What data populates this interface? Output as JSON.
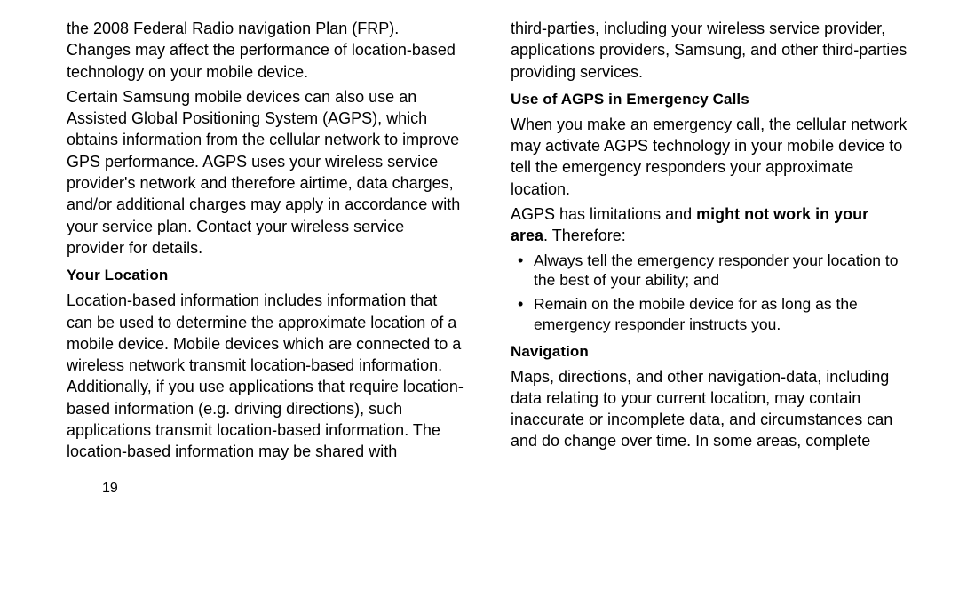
{
  "left": {
    "p1": "the 2008 Federal Radio navigation Plan (FRP). Changes may affect the performance of location-based technology on your mobile device.",
    "p2": "Certain Samsung mobile devices can also use an Assisted Global Positioning System (AGPS), which obtains information from the cellular network to improve GPS performance. AGPS uses your wireless service provider's network and therefore airtime, data charges, and/or additional charges may apply in accordance with your service plan. Contact your wireless service provider for details.",
    "h1": "Your Location",
    "p3": "Location-based information includes information that can be used to determine the approximate location of a mobile device. Mobile devices which are connected to a wireless network transmit location-based information. Additionally, if you use applications that require location-based information (e.g. driving directions), such applications transmit location-based information. The location-based information may be shared with",
    "page_num": "19"
  },
  "right": {
    "p1": "third-parties, including your wireless service provider, applications providers, Samsung, and other third-parties providing services.",
    "h1": "Use of AGPS in Emergency Calls",
    "p2": "When you make an emergency call, the cellular network may activate AGPS technology in your mobile device to tell the emergency responders your approximate location.",
    "p3a": "AGPS has limitations and ",
    "p3b": "might not work in your area",
    "p3c": ". Therefore:",
    "b1": "Always tell the emergency responder your location to the best of your ability; and",
    "b2": "Remain on the mobile device for as long as the emergency responder instructs you.",
    "h2": "Navigation",
    "p4": "Maps, directions, and other navigation-data, including data relating to your current location, may contain inaccurate or incomplete data, and circumstances can and do change over time. In some areas, complete"
  }
}
